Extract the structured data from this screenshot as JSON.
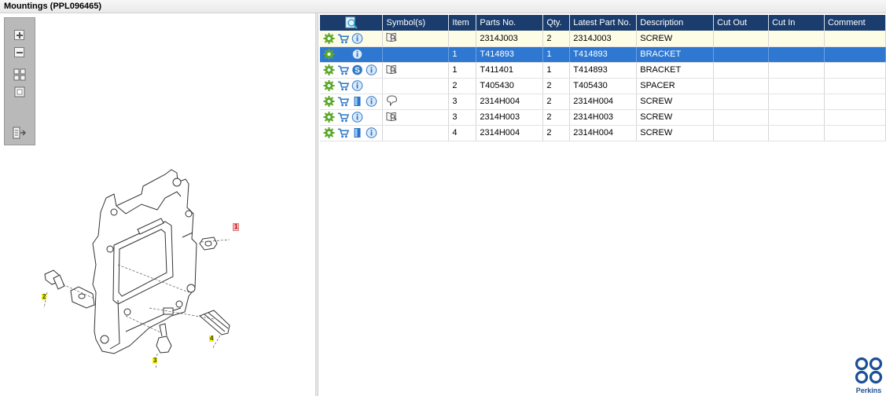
{
  "window": {
    "title": "Mountings (PPL096465)"
  },
  "toolbox": {
    "items": [
      {
        "name": "zoom-in",
        "icon": "plus-icon"
      },
      {
        "name": "zoom-out",
        "icon": "minus-icon"
      },
      {
        "name": "fit-all",
        "icon": "four-squares-icon"
      },
      {
        "name": "fit-window",
        "icon": "square-icon"
      },
      {
        "name": "toggle-list",
        "icon": "list-arrow-icon"
      }
    ]
  },
  "drawing": {
    "callouts": [
      "1",
      "2",
      "3",
      "4"
    ]
  },
  "table": {
    "header_icon": "search-document-icon",
    "columns": [
      "Symbol(s)",
      "Item",
      "Parts No.",
      "Qty.",
      "Latest Part No.",
      "Description",
      "Cut Out",
      "Cut In",
      "Comment"
    ],
    "rows": [
      {
        "icons": [
          "gear",
          "cart",
          "info"
        ],
        "symbols": [
          "book-magnify"
        ],
        "item": "",
        "part_no": "2314J003",
        "qty": "2",
        "latest": "2314J003",
        "desc": "SCREW",
        "cut_out": "",
        "cut_in": "",
        "comment": "",
        "state": "highlight"
      },
      {
        "icons": [
          "gear",
          "cart",
          "info"
        ],
        "symbols": [],
        "item": "1",
        "part_no": "T414893",
        "qty": "1",
        "latest": "T414893",
        "desc": "BRACKET",
        "cut_out": "",
        "cut_in": "",
        "comment": "",
        "state": "selected"
      },
      {
        "icons": [
          "gear",
          "cart",
          "s-badge",
          "info"
        ],
        "symbols": [
          "book-magnify"
        ],
        "item": "1",
        "part_no": "T411401",
        "qty": "1",
        "latest": "T414893",
        "desc": "BRACKET",
        "cut_out": "",
        "cut_in": "",
        "comment": "",
        "state": ""
      },
      {
        "icons": [
          "gear",
          "cart",
          "info"
        ],
        "symbols": [],
        "item": "2",
        "part_no": "T405430",
        "qty": "2",
        "latest": "T405430",
        "desc": "SPACER",
        "cut_out": "",
        "cut_in": "",
        "comment": "",
        "state": ""
      },
      {
        "icons": [
          "gear",
          "cart",
          "book",
          "info"
        ],
        "symbols": [
          "speech-pin"
        ],
        "item": "3",
        "part_no": "2314H004",
        "qty": "2",
        "latest": "2314H004",
        "desc": "SCREW",
        "cut_out": "",
        "cut_in": "",
        "comment": "",
        "state": ""
      },
      {
        "icons": [
          "gear",
          "cart",
          "info"
        ],
        "symbols": [
          "book-magnify"
        ],
        "item": "3",
        "part_no": "2314H003",
        "qty": "2",
        "latest": "2314H003",
        "desc": "SCREW",
        "cut_out": "",
        "cut_in": "",
        "comment": "",
        "state": ""
      },
      {
        "icons": [
          "gear",
          "cart",
          "book",
          "info"
        ],
        "symbols": [],
        "item": "4",
        "part_no": "2314H004",
        "qty": "2",
        "latest": "2314H004",
        "desc": "SCREW",
        "cut_out": "",
        "cut_in": "",
        "comment": "",
        "state": ""
      }
    ]
  },
  "brand": {
    "name": "Perkins",
    "color": "#1c4f96"
  },
  "colors": {
    "header_bg": "#1b3d6e",
    "selected_bg": "#2f78d1",
    "highlight_bg": "#fdfde6",
    "gear": "#5ca829",
    "info": "#2a77c9"
  }
}
